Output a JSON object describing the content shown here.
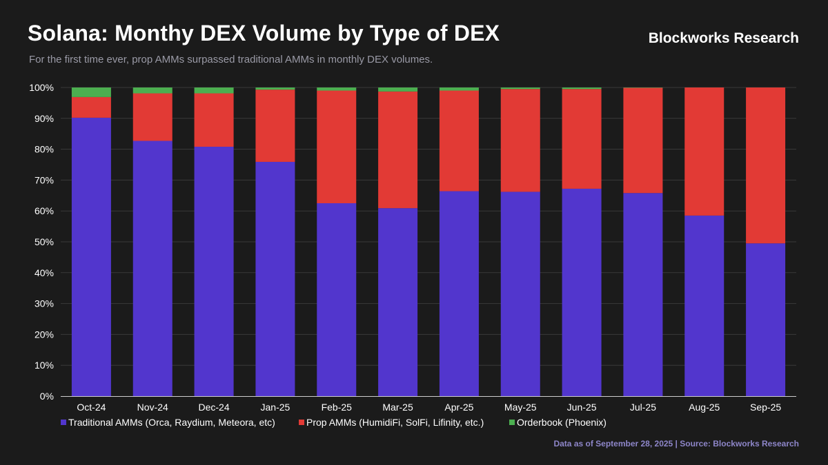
{
  "header": {
    "title": "Solana: Monthy DEX Volume by Type of DEX",
    "subtitle": "For the first time ever, prop AMMs surpassed traditional AMMs in monthly DEX volumes.",
    "brand": "Blockworks Research"
  },
  "footer": {
    "note": "Data as of September 28, 2025 | Source: Blockworks Research"
  },
  "colors": {
    "traditional": "#5236cd",
    "prop": "#e23a35",
    "orderbook": "#4caf50",
    "grid": "#3a3a3a"
  },
  "chart_data": {
    "type": "bar",
    "stacked": true,
    "categories": [
      "Oct-24",
      "Nov-24",
      "Dec-24",
      "Jan-25",
      "Feb-25",
      "Mar-25",
      "Apr-25",
      "May-25",
      "Jun-25",
      "Jul-25",
      "Aug-25",
      "Sep-25"
    ],
    "series": [
      {
        "name": "Traditional AMMs (Orca, Raydium, Meteora, etc)",
        "color": "#5236cd",
        "values": [
          90.2,
          82.7,
          80.8,
          75.9,
          62.5,
          60.9,
          66.4,
          66.2,
          67.2,
          65.8,
          58.5,
          49.5
        ]
      },
      {
        "name": "Prop AMMs (HumidiFi, SolFi, Lifinity, etc.)",
        "color": "#e23a35",
        "values": [
          6.7,
          15.4,
          17.3,
          23.4,
          36.5,
          37.8,
          32.6,
          33.3,
          32.3,
          34.1,
          41.5,
          50.5
        ]
      },
      {
        "name": "Orderbook (Phoenix)",
        "color": "#4caf50",
        "values": [
          3.1,
          1.9,
          1.9,
          0.7,
          1.0,
          1.3,
          1.0,
          0.5,
          0.5,
          0.1,
          0.0,
          0.0
        ]
      }
    ],
    "yticks": [
      "0%",
      "10%",
      "20%",
      "30%",
      "40%",
      "50%",
      "60%",
      "70%",
      "80%",
      "90%",
      "100%"
    ],
    "ylim": [
      0,
      100
    ],
    "grid": true,
    "legend_position": "bottom-left"
  }
}
